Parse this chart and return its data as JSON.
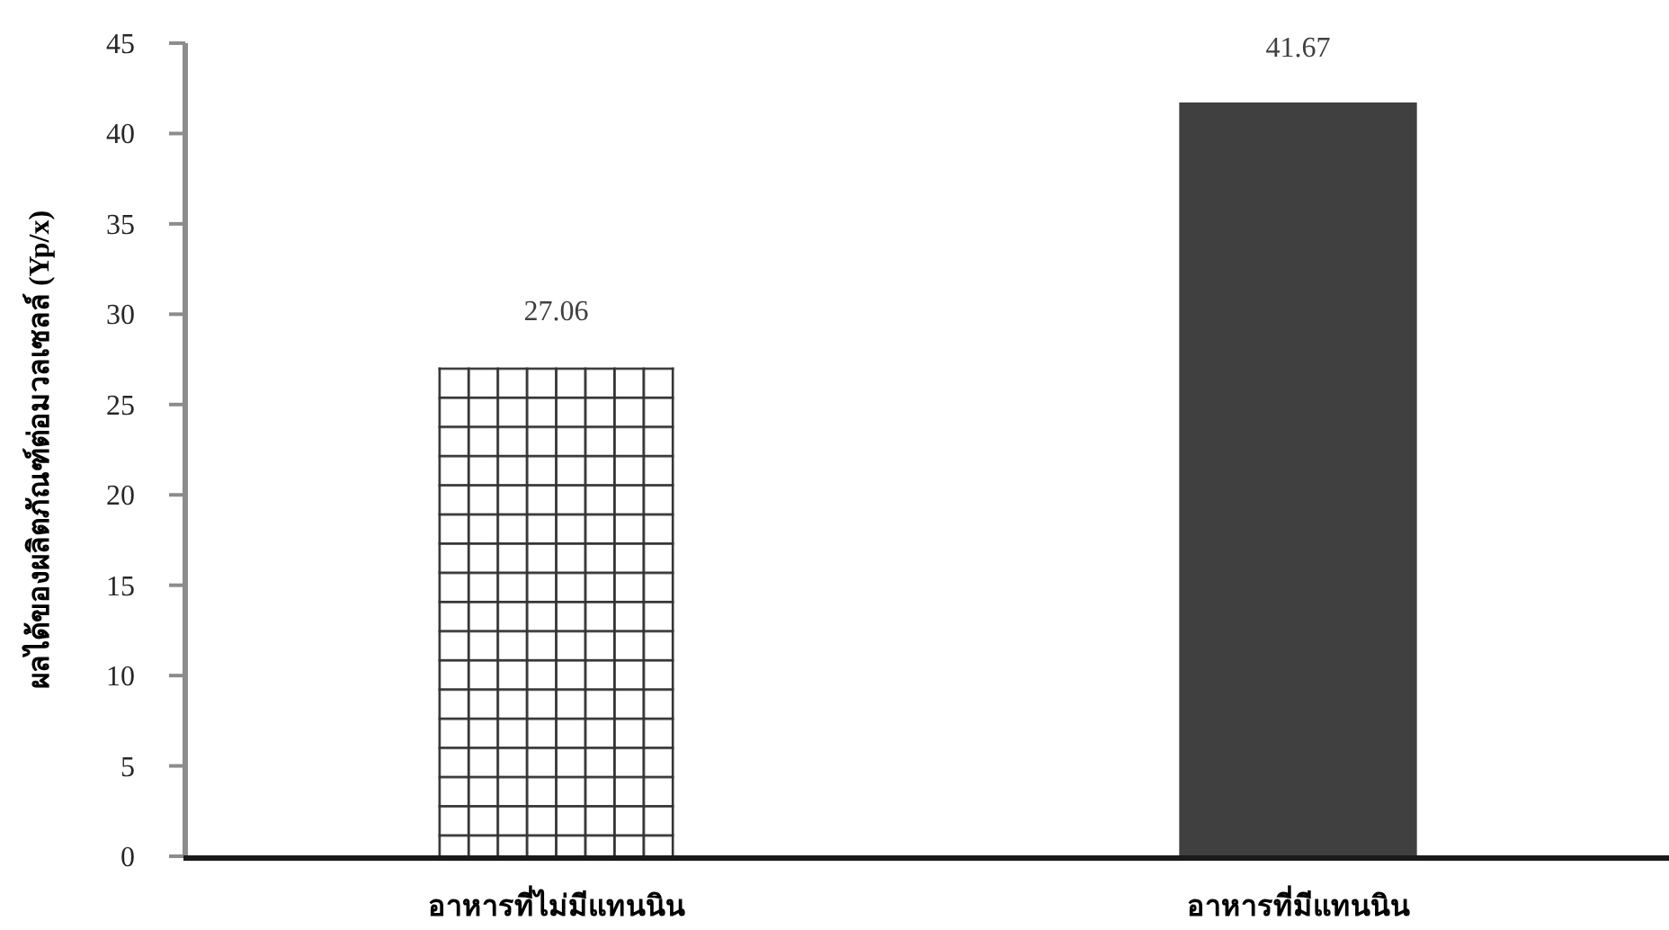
{
  "chart_data": {
    "type": "bar",
    "ylabel": "ผลได้ของผลิตภัณฑ์ต่อมวลเซลล์ (Yp/x)",
    "categories": [
      "อาหารที่ไม่มีแทนนิน",
      "อาหารที่มีแทนนิน"
    ],
    "values": [
      27.06,
      41.67
    ],
    "colors": [
      "#ffffff",
      "#404040"
    ],
    "ylim": [
      0,
      45
    ],
    "yticks": [
      0,
      5,
      10,
      15,
      20,
      25,
      30,
      35,
      40,
      45
    ],
    "data_labels": true
  }
}
